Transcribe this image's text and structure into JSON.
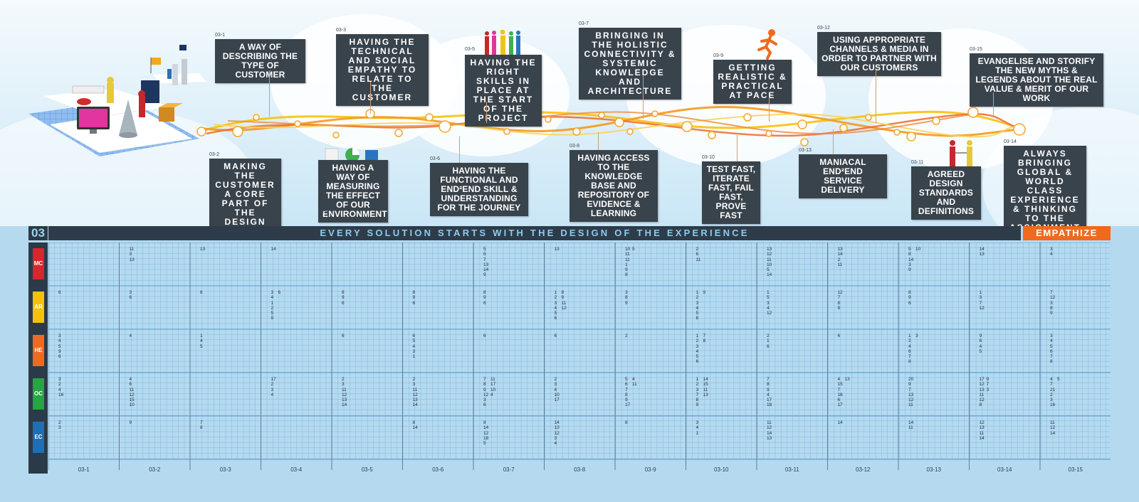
{
  "header": {
    "number": "03",
    "title": "EVERY SOLUTION STARTS WITH THE DESIGN OF THE EXPERIENCE",
    "phase": "EMPATHIZE"
  },
  "colors": {
    "orange": "#ef6a1e",
    "dark": "#39434b",
    "grid_bg": "#b5daf0"
  },
  "categories": [
    {
      "code": "MC",
      "color": "#d7262c"
    },
    {
      "code": "AR",
      "color": "#f4c20d"
    },
    {
      "code": "HE",
      "color": "#ef6a1e"
    },
    {
      "code": "OC",
      "color": "#27a443"
    },
    {
      "code": "EC",
      "color": "#1e6fb5"
    }
  ],
  "stages": [
    {
      "code": "03-1",
      "text": "A WAY OF DESCRIBING THE TYPE OF CUSTOMER"
    },
    {
      "code": "03-2",
      "text": "MAKING THE CUSTOMER A CORE PART OF THE DESIGN PROCESS"
    },
    {
      "code": "03-3",
      "text": "HAVING THE TECHNICAL AND SOCIAL EMPATHY TO RELATE TO THE CUSTOMER"
    },
    {
      "code": "03-4",
      "text": "HAVING A WAY OF MEASURING THE EFFECT OF OUR ENVIRONMENT"
    },
    {
      "code": "03-5",
      "text": "HAVING THE RIGHT SKILLS IN PLACE AT THE START OF THE PROJECT"
    },
    {
      "code": "03-6",
      "text": "HAVING THE FUNCTIONAL AND END²END SKILL & UNDERSTANDING FOR THE JOURNEY"
    },
    {
      "code": "03-7",
      "text": "BRINGING IN THE HOLISTIC CONNECTIVITY & SYSTEMIC KNOWLEDGE AND ARCHITECTURE"
    },
    {
      "code": "03-8",
      "text": "HAVING ACCESS TO THE KNOWLEDGE BASE AND REPOSITORY OF EVIDENCE & LEARNING"
    },
    {
      "code": "03-9",
      "text": "GETTING REALISTIC & PRACTICAL AT PACE"
    },
    {
      "code": "03-10",
      "text": "TEST FAST, ITERATE FAST, FAIL FAST, PROVE FAST"
    },
    {
      "code": "03-12",
      "text": "USING APPROPRIATE CHANNELS & MEDIA IN ORDER TO PARTNER WITH OUR CUSTOMERS"
    },
    {
      "code": "03-13",
      "text": "MANIACAL END²END SERVICE DELIVERY"
    },
    {
      "code": "03-11",
      "text": "AGREED DESIGN STANDARDS AND DEFINITIONS"
    },
    {
      "code": "03-15",
      "text": "EVANGELISE AND STORIFY THE NEW MYTHS & LEGENDS ABOUT THE REAL VALUE & MERIT OF OUR WORK"
    },
    {
      "code": "03-14",
      "text": "ALWAYS BRINGING GLOBAL & WORLD CLASS EXPERIENCE & THINKING TO THE ASSIGNMENT OVER TIME"
    }
  ],
  "columns": [
    "03-1",
    "03-2",
    "03-3",
    "03-4",
    "03-5",
    "03-6",
    "03-7",
    "03-8",
    "03-9",
    "03-10",
    "03-11",
    "03-12",
    "03-13",
    "03-14",
    "03-15"
  ],
  "cells": [
    [
      [
        [],
        []
      ],
      [
        [
          "11",
          "3",
          "13"
        ],
        []
      ],
      [
        [
          "13"
        ],
        []
      ],
      [
        [
          "14"
        ],
        []
      ],
      [
        [],
        []
      ],
      [
        [],
        []
      ],
      [
        [
          "5",
          "6",
          "7",
          "13",
          "14",
          "9"
        ],
        []
      ],
      [
        [
          "13"
        ],
        []
      ],
      [
        [
          "10",
          "11",
          "11",
          "1",
          "9",
          "8"
        ],
        [
          "5"
        ]
      ],
      [
        [
          "2",
          "6",
          "11"
        ],
        []
      ],
      [
        [
          "13",
          "12",
          "11",
          "10",
          "5",
          "14"
        ],
        []
      ],
      [
        [
          "13",
          "14",
          "2",
          "11"
        ],
        []
      ],
      [
        [
          "5",
          "8",
          "14",
          "3",
          "9"
        ],
        [
          "10"
        ]
      ],
      [
        [
          "14",
          "13"
        ],
        []
      ],
      [
        [
          "3",
          "4"
        ],
        []
      ]
    ],
    [
      [
        [
          "6"
        ],
        []
      ],
      [
        [
          "3",
          "6"
        ],
        []
      ],
      [
        [
          "6"
        ],
        []
      ],
      [
        [
          "3",
          "4",
          "1",
          "2",
          "5",
          "9"
        ],
        [
          "6"
        ]
      ],
      [
        [
          "8",
          "9",
          "6"
        ],
        []
      ],
      [
        [
          "8",
          "9",
          "6"
        ],
        []
      ],
      [
        [
          "8",
          "9",
          "6"
        ],
        []
      ],
      [
        [
          "1",
          "2",
          "3",
          "4",
          "5",
          "6"
        ],
        [
          "8",
          "9",
          "11",
          "12"
        ]
      ],
      [
        [
          "3",
          "8",
          "9"
        ],
        []
      ],
      [
        [
          "1",
          "2",
          "3",
          "4",
          "5",
          "8"
        ],
        [
          "9"
        ]
      ],
      [
        [
          "1",
          "5",
          "3",
          "4",
          "12"
        ],
        []
      ],
      [
        [
          "12",
          "7",
          "8",
          "9"
        ],
        []
      ],
      [
        [
          "8",
          "9",
          "6"
        ],
        []
      ],
      [
        [
          "1",
          "3",
          "7",
          "12"
        ],
        []
      ],
      [
        [
          "7",
          "12",
          "3",
          "8",
          "9"
        ],
        []
      ]
    ],
    [
      [
        [
          "3",
          "4",
          "5",
          "9",
          "6"
        ],
        []
      ],
      [
        [
          "4"
        ],
        []
      ],
      [
        [
          "1",
          "4",
          "5"
        ],
        []
      ],
      [
        [],
        []
      ],
      [
        [
          "6"
        ],
        []
      ],
      [
        [
          "6",
          "5",
          "4",
          "3",
          "1"
        ],
        []
      ],
      [
        [
          "6"
        ],
        []
      ],
      [
        [
          "6"
        ],
        []
      ],
      [
        [
          "2"
        ],
        []
      ],
      [
        [
          "1",
          "2",
          "3",
          "4",
          "5",
          "6"
        ],
        [
          "7",
          "8"
        ]
      ],
      [
        [
          "2",
          "1",
          "6"
        ],
        []
      ],
      [
        [
          "6"
        ],
        []
      ],
      [
        [
          "1",
          "2",
          "4",
          "6",
          "7",
          "8"
        ],
        [
          "3"
        ]
      ],
      [
        [
          "9",
          "6",
          "4",
          "5"
        ],
        []
      ],
      [
        [
          "3",
          "4",
          "5",
          "6",
          "7",
          "8"
        ],
        []
      ]
    ],
    [
      [
        [
          "3",
          "2",
          "4",
          "16"
        ],
        []
      ],
      [
        [
          "4",
          "6",
          "11",
          "12",
          "15",
          "10"
        ],
        []
      ],
      [
        [],
        []
      ],
      [
        [
          "17",
          "2",
          "3",
          "4"
        ],
        []
      ],
      [
        [
          "2",
          "3",
          "11",
          "12",
          "13",
          "14"
        ],
        []
      ],
      [
        [
          "2",
          "3",
          "11",
          "12",
          "13",
          "14"
        ],
        []
      ],
      [
        [
          "7",
          "8",
          "9",
          "12",
          "3",
          "6"
        ],
        [
          "11",
          "17",
          "10",
          "4"
        ]
      ],
      [
        [
          "2",
          "3",
          "4",
          "10",
          "17"
        ],
        []
      ],
      [
        [
          "5",
          "6",
          "7",
          "8",
          "9",
          "17"
        ],
        [
          "4",
          "11"
        ]
      ],
      [
        [
          "1",
          "2",
          "3",
          "7",
          "8",
          "9"
        ],
        [
          "14",
          "15",
          "11",
          "13"
        ]
      ],
      [
        [
          "7",
          "8",
          "9",
          "4",
          "17",
          "18"
        ],
        []
      ],
      [
        [
          "4",
          "15",
          "7",
          "16",
          "6",
          "17"
        ],
        [
          "13"
        ]
      ],
      [
        [
          "20",
          "9",
          "7",
          "13",
          "12",
          "11"
        ],
        []
      ],
      [
        [
          "17",
          "12",
          "13",
          "11",
          "12",
          "8"
        ],
        [
          "9",
          "7",
          "3"
        ]
      ],
      [
        [
          "4",
          "7",
          "21",
          "2",
          "3",
          "16"
        ],
        [
          "5"
        ]
      ]
    ],
    [
      [
        [
          "2",
          "3"
        ],
        []
      ],
      [
        [
          "9"
        ],
        []
      ],
      [
        [
          "7",
          "8"
        ],
        []
      ],
      [
        [],
        []
      ],
      [
        [],
        []
      ],
      [
        [
          "8",
          "14"
        ],
        []
      ],
      [
        [
          "8",
          "14",
          "12",
          "18",
          "5"
        ],
        []
      ],
      [
        [
          "14",
          "13",
          "12",
          "3",
          "4"
        ],
        []
      ],
      [
        [
          "8"
        ],
        []
      ],
      [
        [
          "3",
          "4",
          "1"
        ],
        []
      ],
      [
        [
          "11",
          "12",
          "14",
          "13"
        ],
        []
      ],
      [
        [
          "14"
        ],
        []
      ],
      [
        [
          "14",
          "11"
        ],
        []
      ],
      [
        [
          "12",
          "13",
          "11",
          "14"
        ],
        []
      ],
      [
        [
          "11",
          "12",
          "14"
        ],
        []
      ]
    ]
  ]
}
